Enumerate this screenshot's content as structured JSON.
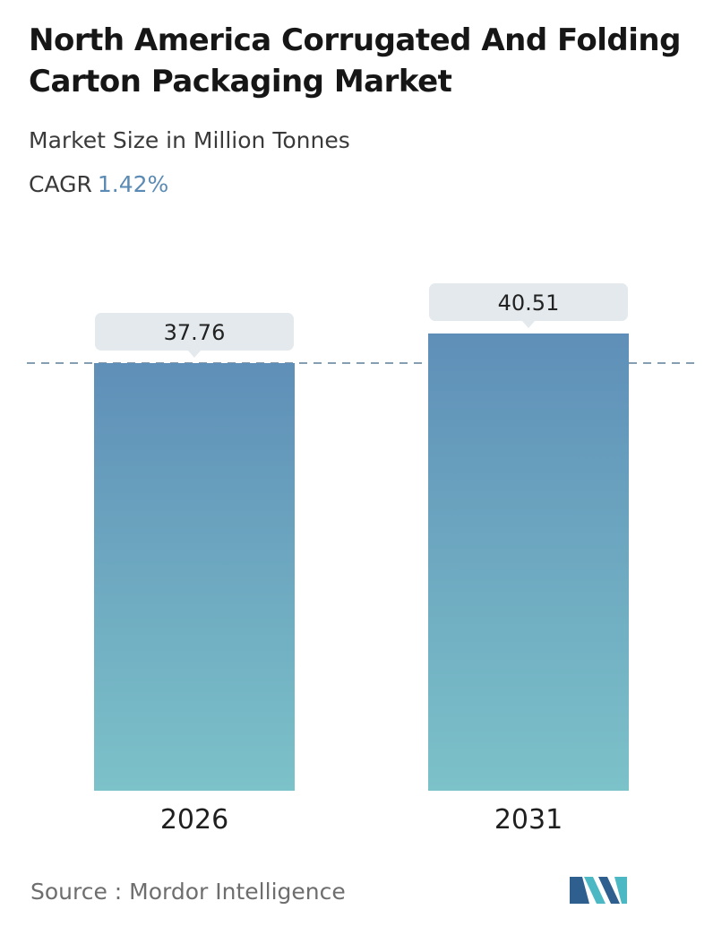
{
  "header": {
    "title": "North America Corrugated And Folding Carton Packaging Market",
    "subtitle": "Market Size in Million Tonnes",
    "cagr_label": "CAGR",
    "cagr_value": "1.42%"
  },
  "footer": {
    "source": "Source :  Mordor Intelligence",
    "logo_icon": "mordor-intelligence-logo"
  },
  "colors": {
    "bar_top": "#5f8fb8",
    "bar_bottom": "#7cc2c9",
    "label_bg": "#e3e9ec",
    "dashed_line": "#5f7f99",
    "cagr_accent": "#5b8bb4",
    "logo_dark": "#2f5f8f",
    "logo_light": "#4cb8c4"
  },
  "chart_data": {
    "type": "bar",
    "title": "North America Corrugated And Folding Carton Packaging Market",
    "subtitle": "Market Size in Million Tonnes",
    "categories": [
      "2026",
      "2031"
    ],
    "values": [
      37.76,
      40.51
    ],
    "value_labels": [
      "37.76",
      "40.51"
    ],
    "ylim": [
      0,
      40.51
    ],
    "grid": false,
    "legend": "none",
    "reference_line": 37.76
  }
}
